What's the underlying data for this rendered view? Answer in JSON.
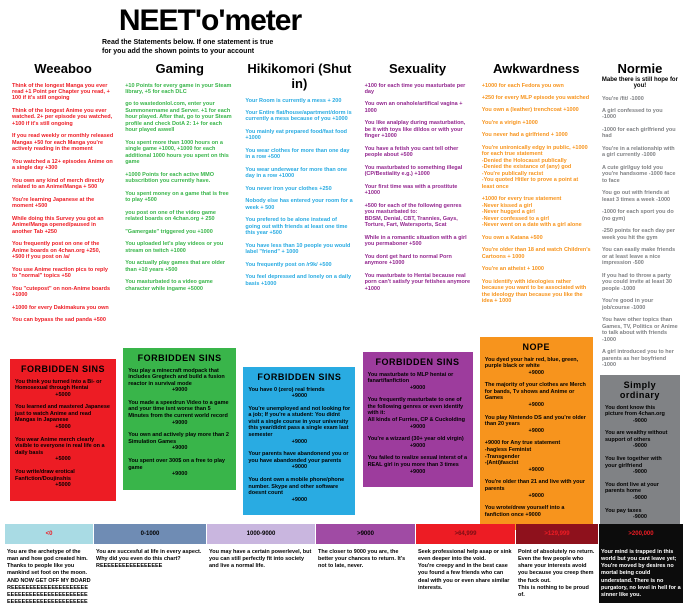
{
  "title": "NEET'o'meter",
  "subtitle": "Read the Statements below. If one statement is true for you add the shown points to your account",
  "columns": [
    {
      "name": "Weeaboo",
      "tagline": "",
      "color": "#ed1c24",
      "items": [
        "Think of the longest Manga you ever read  +1 Point per Chapter you read, + 100 if it's still ongoing",
        "Think of the longest Anime you ever watched. 2+ per episode you watched, +100 if it's still ongoing",
        "If you read weekly or monthly released Mangas +50 for each Manga you're actively reading in the moment",
        "You watched a 12+ episodes Anime on a single day +300",
        "You own any kind of merch directly related to an Anime/Manga + 500",
        "You're learning Japanese at the moment +500",
        "While doing this Survey you got an Anime/Manga opened/paused in another Tab +250",
        "You frequently post on one of the Anime boards on 4chan.org  +250, +500 if you post on /a/",
        "You use Anime reaction pics to reply to \"normal\" topics +50",
        "You \"cutepost\" on non-Anime boards +1000",
        "+1000 for every Dakimakura you own",
        "You can bypass the sad panda +500"
      ],
      "box": {
        "title": "FORBIDDEN SINS",
        "color": "#ed1c24",
        "items": [
          {
            "text": "You think you turned into a Bi- or Homosexual through Hentai",
            "value": "+5000"
          },
          {
            "text": "You learned and mastered Japanese just to watch Anime and read Mangas in Japanese",
            "value": "+5000"
          },
          {
            "text": "You wear Anime merch clearly visible to everyone in real life on a daily basis",
            "value": "+5000"
          },
          {
            "text": "You write/draw erotical Fanfiction/Doujinshis",
            "value": "+5000"
          }
        ]
      }
    },
    {
      "name": "Gaming",
      "tagline": "",
      "color": "#39b54a",
      "items": [
        "+10 Points for every game in your Steam library, +5 for each DLC",
        "go to wastedonlol.com, enter your Summonername and Server. +1 for each hour played. After that, go to your Steam profile and check DotA 2: 1+ for each hour played aswell",
        "You spent more than 1000 hours on a single game +1000, +1000 for each additional 1000 hours you spent on this game",
        "+1000 Points for each active MMO subscribtion you currently have.",
        "You spent money on a game that is free to play +500",
        "you post on one of the video game related boards on 4chan.org + 250",
        "\"Gamergate\" triggered you +1000",
        "You uploaded let's play videos or you stream on twitch +1000",
        "You actually play games that are older than +10 years  +500",
        "You masturbated to a video game character while ingame +5000"
      ],
      "box": {
        "title": "FORBIDDEN SINS",
        "color": "#39b54a",
        "items": [
          {
            "text": "You play a minecraft modpack that includes Gregtech and build a fusion reactor in survival mode",
            "value": "+9000"
          },
          {
            "text": "You made a speedrun Video to a game and your time isnt worse than 5 Minutes from the current world record",
            "value": "+9000"
          },
          {
            "text": "You own and actively play more than 2 Simulation Games",
            "value": "+9000"
          },
          {
            "text": "You spent over 300$ on a free to play game",
            "value": "+9000"
          }
        ]
      }
    },
    {
      "name": "Hikikomori (Shut in)",
      "tagline": "",
      "color": "#29abe2",
      "items": [
        "Your Room is currently a mess + 200",
        "Your Entire flat/house/apartment/dorm is currently a mess because of you +1000",
        "You mainly eat prepared food/fast food +1000",
        "You wear clothes for more than one day in a row +500",
        "You wear underwear for more than one day in a row +1000",
        "You never iron your clothes +250",
        "Nobody else has entered your room for a week + 500",
        "You prefered to be alone instead of going out with friends at least one time this year +500",
        "You have less than 10 people you would label \"friend\" + 1000",
        "You frequently post on /r9k/ +500",
        "You feel depressed and lonely on a daily basis +1000"
      ],
      "box": {
        "title": "FORBIDDEN SINS",
        "color": "#29abe2",
        "items": [
          {
            "text": "You have 0 (zero) real friends",
            "value": "+9000"
          },
          {
            "text": "You're unemployed and not looking for a job; If you're a student: You didnt visit a single course in your university this year/didnt pass a single exam last semester",
            "value": "+9000"
          },
          {
            "text": "Your parents have abandonend you or you have abandonded your parents",
            "value": "+9000"
          },
          {
            "text": "You dont own a mobile phone/phone number. Skype and other software doesnt count",
            "value": "+9000"
          }
        ]
      }
    },
    {
      "name": "Sexuality",
      "tagline": "",
      "color": "#93278f",
      "items": [
        "+100 for each time you masturbate per day",
        "You own an onahole/artifical vagina + 1000",
        "You like analplay during masturbation, be it with toys like dildos or with your finger +1000",
        "You have a fetish you cant tell other people about +500",
        "You masturbated to something illegal (CP/Bestiality e.g.) +1000",
        "Your first time was with a prostitute +1000",
        "+500 for each of the following genres you masturbated to:\nBDSM, Denial, CBT, Trannies, Gays, Torture, Fart, Watersports, Scat",
        "While in a romantic situation with a girl you permaboner +500",
        "You dont get hard to normal Porn anymore +1000",
        "You masturbate to Hentai because real porn can't satisfy your fetishes anymore +1000"
      ],
      "box": {
        "title": "FORBIDDEN SINS",
        "color": "#9d3c9d",
        "items": [
          {
            "text": "You masturbate to MLP hentai or fanart/fanfiction",
            "value": "+9000"
          },
          {
            "text": "You frequently masturbate to one of the following genres or even identify with it:\nAll kinds of Furries, CP & Cuckolding",
            "value": "+9000"
          },
          {
            "text": "You're a wizzard (30+ year old virgin)",
            "value": "+9000"
          },
          {
            "text": "You failed to realize sexual interst of a REAL girl in you more than 3 times",
            "value": "+9000"
          }
        ]
      }
    },
    {
      "name": "Awkwardness",
      "tagline": "",
      "color": "#f7941d",
      "items": [
        "+1000 for each Fedora you own",
        "+250 for every MLP episode you watched",
        "You own a (leather) trenchcoat +1000",
        "You're a virigin +1000",
        "You never had a girlfriend + 1000",
        "You're unironically edgy in public, +1000 for each true statement\n-Denied the Holocaust publically\n-Denied the existance of (any) god\n-You're publically racist\n-You quoted Hitler to prove a point at least once",
        "+1000 for every true statement\n-Never kissed a girl\n-Never hugged a girl\n-Never confessed to a girl\n-Never went on a date with a girl alone",
        "You own a Katana +500",
        "You're older than 18 and watch Children's Cartoons + 1000",
        "You're an atheist + 1000",
        "You identify with ideologies rather because you want to be associated with the ideology than because you like the idea + 1000"
      ],
      "box": {
        "title": "NOPE",
        "color": "#f7941d",
        "items": [
          {
            "text": "You dyed your hair red, blue, green, purple black or white",
            "value": "+9000"
          },
          {
            "text": "The majority of your clothes are Merch for bands, Tv shows and Anime or Games",
            "value": "+9000"
          },
          {
            "text": "You play Nintendo DS and you're older than 20 years",
            "value": "+9000"
          },
          {
            "text": "+9000 for Any true statement\n-hagless Feminist\n-Transgender\n-(Anti)fascist",
            "value": "+9000"
          },
          {
            "text": "You're older than 21 and live with your parents",
            "value": "+9000"
          },
          {
            "text": "You wrote/drew yourself into a fanfiction once +9000",
            "value": ""
          }
        ]
      }
    },
    {
      "name": "Normie",
      "tagline": "Mabe there is still hope for you!",
      "color": "#808285",
      "items": [
        "You're /fit/ -1000",
        "A girl confessed to you -1000",
        "-1000 for each girlfriend you had",
        "You're in a relationship with a girl currently -1000",
        "A cute girl/guy told you you're handsome -1000 face to face",
        "You go out with friends at least 3 times a week -1000",
        "-1000 for each sport you do (no gym)",
        "-250 points for each day per week you hit the gym",
        "You can easily make friends or at least leave a nice impression -500",
        "If you had to throw a party you could invite at least 30 people -1000",
        "You're good in your job/course -1000",
        "You have other topics than Games, TV, Politics or Anime to talk about with friends -1000",
        "A girl introduced you to her parents as her boyfriend -1000"
      ],
      "box": {
        "title": "Simply ordinary",
        "color": "#808285",
        "items": [
          {
            "text": "You dont know this picture from 4chan.org",
            "value": "-9000"
          },
          {
            "text": "You are wealthy without support of others",
            "value": "-9000"
          },
          {
            "text": "You live together with your girlfriend",
            "value": "-9000"
          },
          {
            "text": "You dont live at your parents home",
            "value": "-9000"
          },
          {
            "text": "You pay taxes",
            "value": "-9000"
          },
          {
            "text": "You have an University degree or an completed apprenticeship",
            "value": "-9000"
          }
        ]
      }
    }
  ],
  "scale": [
    {
      "label": "<0",
      "color": "#a9dbe4",
      "label_color": "#ed1c24",
      "text": "You are the archetype of the man and how god created him. Thanks to people like you mankind set foot on the moon. AND NOW GET OFF MY BOARD\nREEEEEEEEEEEEEEEEEEEEEEEEEEEEEEEEEEEEEEEEEEEEEEEEEEEEEEEEEEEEEEEEEEEEEEE"
    },
    {
      "label": "0-1000",
      "color": "#6f8cb4",
      "label_color": "#000000",
      "text": "You are succesful at life in every aspect. Why did you even do this chart?\nREEEEEEEEEEEEEEEEE"
    },
    {
      "label": "1000-9000",
      "color": "#c9b6df",
      "label_color": "#000000",
      "text": "You may have a certain powerlevel, but you can still perfectly fit into society and live a normal life."
    },
    {
      "label": ">9000",
      "color": "#a04ba4",
      "label_color": "#000000",
      "text": "The closer to 9000 you are, the better your chances to return. It's not to late, never."
    },
    {
      "label": ">64,999",
      "color": "#ed1c24",
      "label_color": "#7c0e14",
      "text": "Seek professional help asap or sink even deeper into the void.\nYou're creepy and in the best case you found a few friends who can deal with you or even share similar interests."
    },
    {
      "label": ">129,999",
      "color": "#8e111c",
      "label_color": "#ed1c24",
      "text": "Point of absolutely no return. Even the few people who share your interests avoid you because you creep them the fuck out.\nThis is nothing to be proud of."
    },
    {
      "label": ">200,000",
      "color": "#0c0c0c",
      "label_color": "#ed1c24",
      "body_bg": "#0c0c0c",
      "body_color": "#ffffff",
      "text": "Your mind is trapped in this world but you cant leave yet; You're moved by desires no mortal being could understand. There is no purgatory, no level in hell for a sinner like you.\n\nYour journey has just begun."
    }
  ]
}
